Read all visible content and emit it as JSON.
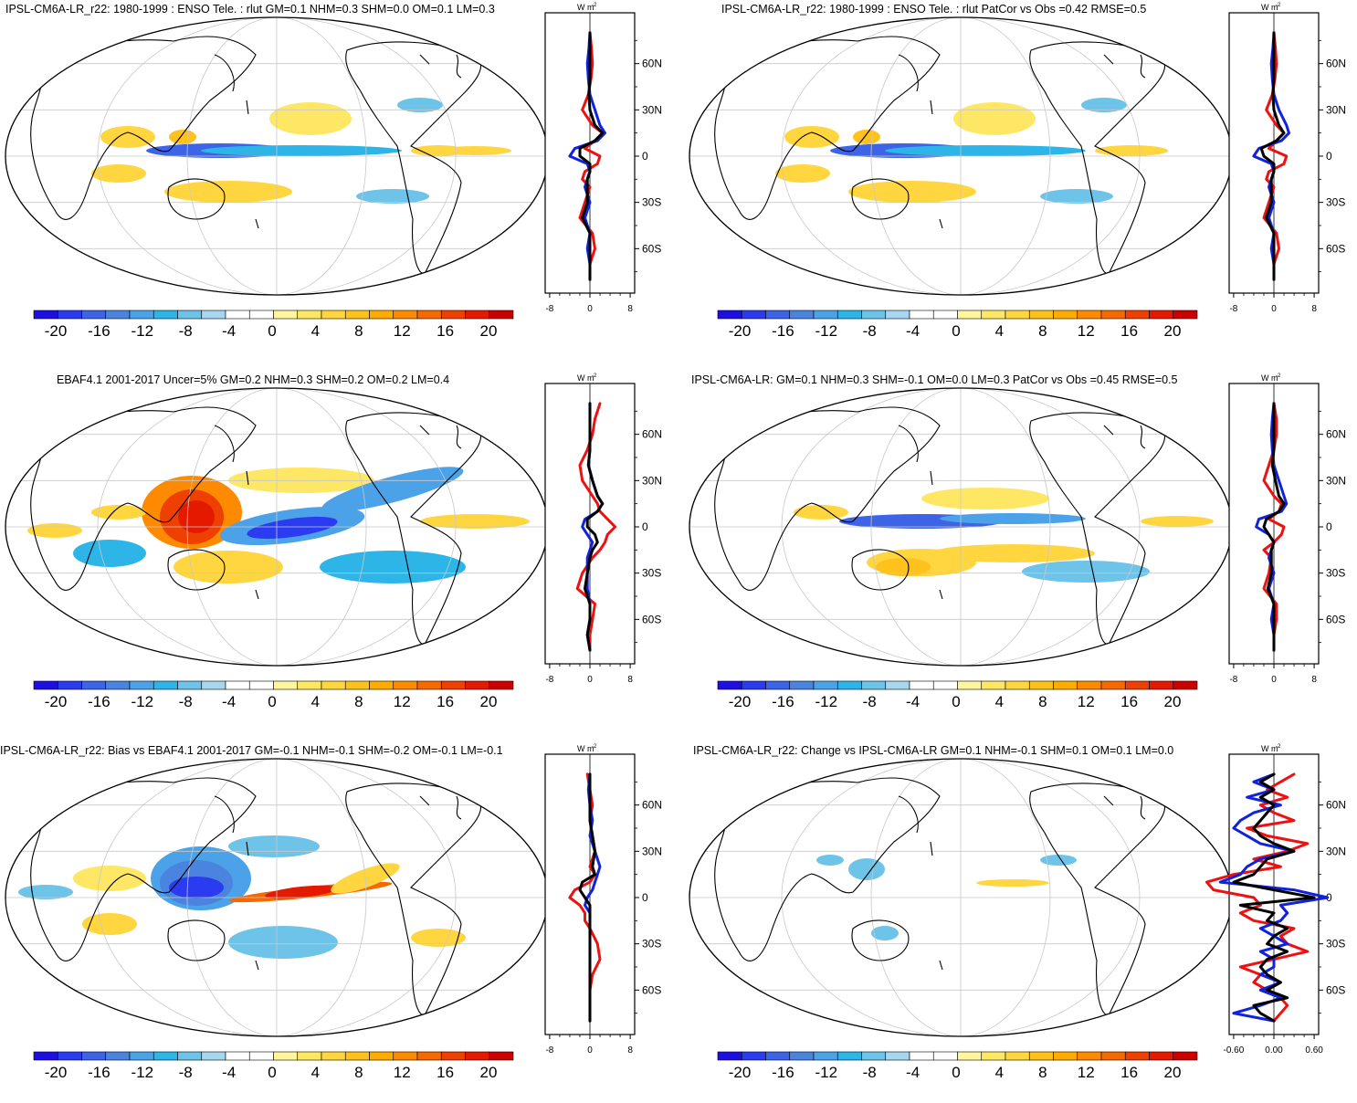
{
  "colorbar": {
    "colors": [
      "#1d0fe2",
      "#2b3bf0",
      "#3d63e6",
      "#4a84de",
      "#4ca2e8",
      "#2db5e8",
      "#6ec3e8",
      "#a6d7ee",
      "#ffffff",
      "#ffffff",
      "#fff59f",
      "#ffe766",
      "#ffd640",
      "#ffc21c",
      "#ffab00",
      "#fd8a00",
      "#f66800",
      "#ee4000",
      "#e41a00",
      "#cc0000"
    ],
    "tick_labels": [
      "-20",
      "-16",
      "-12",
      "-8",
      "-4",
      "0",
      "4",
      "8",
      "12",
      "16",
      "20"
    ]
  },
  "profile": {
    "unit_label": "W m",
    "unit_superscript": "-2",
    "lat_labels": [
      "60N",
      "30N",
      "0",
      "30S",
      "60S"
    ]
  },
  "legend_colors": {
    "red": "#ee1111",
    "blue": "#1122dd",
    "black": "#000000"
  },
  "panels": [
    {
      "title": "IPSL-CM6A-LR_r22: 1980-1999 : ENSO Tele. : rlut GM=0.1 NHM=0.3 SHM=0.0 OM=0.1 LM=0.3",
      "xlabels": [
        "-8",
        "0",
        "8"
      ],
      "chart_data": {
        "type": "line",
        "lat": [
          80,
          70,
          60,
          50,
          40,
          30,
          20,
          15,
          10,
          5,
          0,
          -5,
          -10,
          -15,
          -20,
          -30,
          -40,
          -50,
          -60,
          -70,
          -80
        ],
        "series": [
          {
            "color": "red",
            "values": [
              0,
              0.3,
              0.5,
              0.2,
              -0.3,
              -1.5,
              0.5,
              2.5,
              1,
              -1,
              2,
              1.5,
              -1,
              -1.5,
              0,
              -1,
              -2,
              0.5,
              1,
              0,
              0
            ]
          },
          {
            "color": "blue",
            "values": [
              0,
              -0.2,
              -0.5,
              -0.3,
              0,
              1,
              2,
              3,
              1.5,
              -3,
              -4,
              -0.5,
              0,
              -0.5,
              -1,
              0,
              -1,
              0,
              -0.5,
              0,
              0
            ]
          },
          {
            "color": "black",
            "values": [
              0,
              0,
              0,
              0,
              -0.2,
              0,
              1,
              2.5,
              1,
              -2,
              -2,
              0,
              0,
              -0.5,
              -0.5,
              -0.5,
              -1.5,
              0,
              0,
              0,
              0
            ]
          }
        ],
        "xlim": [
          -8,
          8
        ],
        "ylim": [
          -80,
          80
        ]
      }
    },
    {
      "title": "IPSL-CM6A-LR_r22: 1980-1999 : ENSO Tele. : rlut PatCor vs Obs =0.42 RMSE=0.5",
      "xlabels": [
        "-8",
        "0",
        "8"
      ],
      "chart_data": {
        "type": "line",
        "lat": [
          80,
          70,
          60,
          50,
          40,
          30,
          20,
          15,
          10,
          5,
          0,
          -5,
          -10,
          -15,
          -20,
          -30,
          -40,
          -50,
          -60,
          -70,
          -80
        ],
        "series": [
          {
            "color": "red",
            "values": [
              0,
              0.3,
              0.5,
              0.2,
              -0.3,
              -1.5,
              0.5,
              2,
              0.5,
              -1,
              2.5,
              2,
              -1,
              -1.5,
              0,
              -1,
              -2,
              0.5,
              1,
              0,
              0
            ]
          },
          {
            "color": "blue",
            "values": [
              0,
              -0.2,
              -0.5,
              -0.3,
              0,
              1,
              2.5,
              3,
              1.5,
              -3,
              -4,
              -0.5,
              0,
              -0.5,
              -1,
              0,
              -1,
              0,
              -0.5,
              0,
              0
            ]
          },
          {
            "color": "black",
            "values": [
              0,
              0,
              0,
              0,
              -0.2,
              0,
              1,
              2,
              0.5,
              -2.5,
              -2,
              0,
              0,
              -0.5,
              -0.5,
              -0.5,
              -1.5,
              0,
              0,
              0,
              0
            ]
          }
        ],
        "xlim": [
          -8,
          8
        ],
        "ylim": [
          -80,
          80
        ]
      }
    },
    {
      "title": "EBAF4.1 2001-2017 Uncer=5% GM=0.2 NHM=0.3 SHM=0.2 OM=0.2 LM=0.4",
      "xlabels": [
        "-8",
        "0",
        "8"
      ],
      "chart_data": {
        "type": "line",
        "lat": [
          80,
          70,
          60,
          50,
          40,
          30,
          20,
          15,
          10,
          5,
          0,
          -5,
          -10,
          -15,
          -20,
          -30,
          -40,
          -50,
          -60,
          -70,
          -80
        ],
        "series": [
          {
            "color": "red",
            "values": [
              2,
              1,
              0.5,
              -0.5,
              -2,
              -1.5,
              0.5,
              1.5,
              2,
              3.5,
              5,
              3.5,
              3,
              2,
              0.5,
              -1.5,
              -2.5,
              1,
              0.5,
              0,
              0
            ]
          },
          {
            "color": "blue",
            "values": [
              0,
              0,
              0,
              0,
              -0.3,
              0.5,
              1.5,
              2.5,
              1.5,
              -1,
              -1.5,
              -0.5,
              0.5,
              0,
              -0.5,
              -0.5,
              -0.5,
              0,
              0,
              -0.5,
              0
            ]
          },
          {
            "color": "black",
            "values": [
              0,
              0,
              0,
              0,
              -0.3,
              0.5,
              1.5,
              2.5,
              1.5,
              -0.5,
              -0.5,
              1,
              1.5,
              0.5,
              0,
              -0.5,
              -1,
              0,
              0,
              -0.5,
              0
            ]
          }
        ],
        "xlim": [
          -8,
          8
        ],
        "ylim": [
          -80,
          80
        ]
      }
    },
    {
      "title": "IPSL-CM6A-LR: GM=0.1 NHM=0.3 SHM=-0.1 OM=0.0 LM=0.3 PatCor vs Obs =0.45 RMSE=0.5",
      "xlabels": [
        "-8",
        "0",
        "8"
      ],
      "chart_data": {
        "type": "line",
        "lat": [
          80,
          70,
          60,
          50,
          40,
          30,
          20,
          15,
          10,
          5,
          0,
          -5,
          -10,
          -15,
          -20,
          -30,
          -40,
          -50,
          -60,
          -70,
          -80
        ],
        "series": [
          {
            "color": "red",
            "values": [
              0,
              0.5,
              0.5,
              0,
              -1,
              -2,
              0,
              1.5,
              1,
              -1,
              2,
              1.5,
              0,
              -2,
              -0.5,
              -1,
              -2,
              0.5,
              0.5,
              0,
              0
            ]
          },
          {
            "color": "blue",
            "values": [
              0,
              -0.3,
              -0.5,
              -0.3,
              0,
              1,
              2,
              2.5,
              1.5,
              -3,
              -3.5,
              -1,
              0,
              -0.5,
              -1,
              0,
              -1,
              0,
              -0.5,
              0,
              0
            ]
          },
          {
            "color": "black",
            "values": [
              0,
              0,
              0,
              0,
              -0.3,
              0.3,
              1,
              2,
              1,
              -1.5,
              -2,
              -1,
              0,
              -0.5,
              -0.5,
              -0.5,
              -1.2,
              0,
              0,
              0,
              0
            ]
          }
        ],
        "xlim": [
          -8,
          8
        ],
        "ylim": [
          -80,
          80
        ]
      }
    },
    {
      "title": "IPSL-CM6A-LR_r22: Bias vs EBAF4.1 2001-2017 GM=-0.1 NHM=-0.1 SHM=-0.2 OM=-0.1 LM=-0.1",
      "xlabels": [
        "-8",
        "0",
        "8"
      ],
      "chart_data": {
        "type": "line",
        "lat": [
          80,
          70,
          60,
          50,
          40,
          30,
          20,
          15,
          10,
          5,
          0,
          -5,
          -10,
          -15,
          -20,
          -30,
          -40,
          -50,
          -60,
          -70,
          -80
        ],
        "series": [
          {
            "color": "red",
            "values": [
              -0.5,
              0,
              0.5,
              0,
              0.5,
              1,
              0,
              1,
              0,
              -3,
              -4,
              -2,
              -1,
              -1,
              0,
              1.5,
              2,
              0.5,
              0,
              0,
              0
            ]
          },
          {
            "color": "blue",
            "values": [
              0,
              -0.3,
              0,
              0.5,
              0,
              1,
              2,
              1.5,
              1,
              0.5,
              -0.5,
              -1,
              0,
              0,
              0,
              0,
              0,
              0,
              0,
              0,
              0
            ]
          },
          {
            "color": "black",
            "values": [
              0,
              0,
              0,
              0,
              0.5,
              1,
              0.5,
              1,
              -1.5,
              -2,
              -1,
              0,
              0,
              0,
              0,
              0,
              0,
              0,
              0,
              0,
              0
            ]
          }
        ],
        "xlim": [
          -8,
          8
        ],
        "ylim": [
          -80,
          80
        ]
      }
    },
    {
      "title": "IPSL-CM6A-LR_r22: Change vs IPSL-CM6A-LR GM=0.1 NHM=-0.1 SHM=0.1 OM=0.1 LM=0.0",
      "xlabels": [
        "-0.60",
        "0.00",
        "0.60"
      ],
      "chart_data": {
        "type": "line",
        "lat": [
          80,
          75,
          70,
          65,
          60,
          55,
          50,
          45,
          40,
          35,
          30,
          25,
          20,
          15,
          10,
          5,
          0,
          -5,
          -10,
          -15,
          -20,
          -25,
          -30,
          -35,
          -40,
          -45,
          -50,
          -55,
          -60,
          -65,
          -70,
          -75,
          -80
        ],
        "series": [
          {
            "color": "red",
            "values": [
              0.3,
              0.1,
              -0.1,
              0.2,
              -0.2,
              0,
              0.3,
              -0.4,
              -0.1,
              0.5,
              0.2,
              -0.3,
              0.1,
              -0.6,
              -1.0,
              -0.9,
              -0.3,
              -0.2,
              -0.5,
              -0.3,
              0.3,
              0.1,
              0.2,
              0.5,
              0,
              -0.5,
              -0.2,
              -0.3,
              -0.1,
              0.1,
              0.2,
              0.1,
              0
            ]
          },
          {
            "color": "blue",
            "values": [
              0,
              -0.3,
              0,
              -0.4,
              0.1,
              -0.3,
              -0.5,
              -0.6,
              -0.4,
              -0.2,
              0.3,
              -0.2,
              -0.4,
              -0.5,
              -0.8,
              0.3,
              0.8,
              0.1,
              0.2,
              0.1,
              -0.2,
              0,
              0.2,
              -0.2,
              0,
              0,
              -0.2,
              0.1,
              -0.2,
              0.1,
              -0.2,
              -0.6,
              0
            ]
          },
          {
            "color": "black",
            "values": [
              0,
              -0.2,
              0,
              -0.2,
              0,
              -0.1,
              -0.2,
              -0.3,
              -0.2,
              0,
              0.3,
              -0.1,
              -0.2,
              -0.3,
              -0.6,
              0,
              0.6,
              -0.5,
              0,
              -0.1,
              0.2,
              0,
              -0.1,
              0.2,
              -0.1,
              -0.2,
              -0.1,
              0.1,
              -0.1,
              0.2,
              -0.3,
              -0.2,
              0
            ]
          }
        ],
        "xlim": [
          -0.6,
          0.6
        ],
        "ylim": [
          -80,
          80
        ]
      }
    }
  ]
}
